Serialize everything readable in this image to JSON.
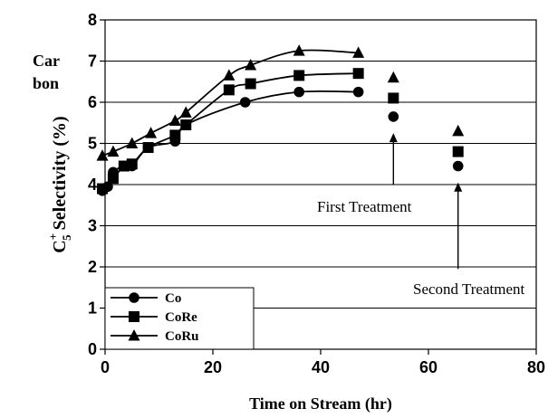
{
  "chart_data": {
    "type": "line",
    "xlabel": "Time on Stream (hr)",
    "ylabel_main": "C",
    "ylabel_sup": "+",
    "ylabel_sub": "5",
    "ylabel_rest": " Selectivity (%)",
    "side_label": [
      "Car",
      "bon"
    ],
    "xlim": [
      0,
      80
    ],
    "ylim": [
      0,
      8
    ],
    "xticks": [
      0,
      20,
      40,
      60,
      80
    ],
    "yticks": [
      0,
      1,
      2,
      3,
      4,
      5,
      6,
      7,
      8
    ],
    "grid": "horizontal",
    "legend_position": "bottom-left",
    "series": [
      {
        "name": "Co",
        "marker": "circle",
        "points": [
          [
            -0.5,
            3.85
          ],
          [
            0.5,
            3.95
          ],
          [
            1.5,
            4.3
          ],
          [
            3.5,
            4.45
          ],
          [
            5,
            4.45
          ],
          [
            8,
            4.9
          ],
          [
            13,
            5.05
          ],
          [
            15,
            5.45
          ],
          [
            26,
            6.0
          ],
          [
            36,
            6.25
          ],
          [
            47,
            6.25
          ]
        ],
        "after_treatment": [
          [
            53.5,
            5.65
          ],
          [
            65.5,
            4.45
          ]
        ]
      },
      {
        "name": "CoRe",
        "marker": "square",
        "points": [
          [
            -0.5,
            3.9
          ],
          [
            1.5,
            4.15
          ],
          [
            3.5,
            4.45
          ],
          [
            5,
            4.5
          ],
          [
            8,
            4.9
          ],
          [
            13,
            5.2
          ],
          [
            15,
            5.45
          ],
          [
            23,
            6.3
          ],
          [
            27,
            6.45
          ],
          [
            36,
            6.65
          ],
          [
            47,
            6.7
          ]
        ],
        "after_treatment": [
          [
            53.5,
            6.1
          ],
          [
            65.5,
            4.8
          ]
        ]
      },
      {
        "name": "CoRu",
        "marker": "triangle",
        "points": [
          [
            -0.5,
            4.7
          ],
          [
            1.5,
            4.8
          ],
          [
            5,
            5.0
          ],
          [
            8.5,
            5.25
          ],
          [
            13,
            5.55
          ],
          [
            15,
            5.75
          ],
          [
            23,
            6.65
          ],
          [
            27,
            6.9
          ],
          [
            36,
            7.25
          ],
          [
            47,
            7.2
          ]
        ],
        "after_treatment": [
          [
            53.5,
            6.6
          ],
          [
            65.5,
            5.3
          ]
        ]
      }
    ],
    "annotations": [
      {
        "text": "First Treatment",
        "arrow_x": 53.5,
        "arrow_from_y": 4.0,
        "arrow_to_y": 5.25
      },
      {
        "text": "Second Treatment",
        "arrow_x": 65.5,
        "arrow_from_y": 1.95,
        "arrow_to_y": 4.05
      }
    ]
  }
}
